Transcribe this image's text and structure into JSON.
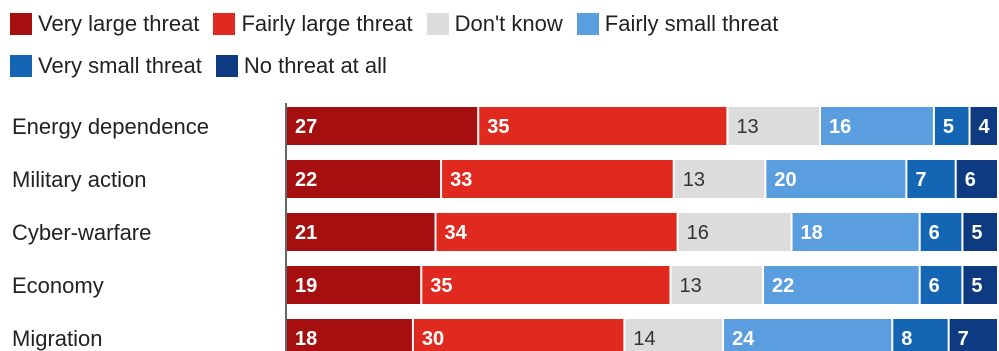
{
  "chart_data": {
    "type": "bar",
    "stacked": true,
    "orientation": "horizontal",
    "categories": [
      "Energy dependence",
      "Military action",
      "Cyber-warfare",
      "Economy",
      "Migration"
    ],
    "series": [
      {
        "name": "Very large threat",
        "color": "#a50f0f",
        "values": [
          27,
          22,
          21,
          19,
          18
        ]
      },
      {
        "name": "Fairly large threat",
        "color": "#e02a1f",
        "values": [
          35,
          33,
          34,
          35,
          30
        ]
      },
      {
        "name": "Don't know",
        "color": "#dcdcdc",
        "values": [
          13,
          13,
          16,
          13,
          14
        ]
      },
      {
        "name": "Fairly small threat",
        "color": "#5b9ee0",
        "values": [
          16,
          20,
          18,
          22,
          24
        ]
      },
      {
        "name": "Very small threat",
        "color": "#1565b5",
        "values": [
          5,
          7,
          6,
          6,
          8
        ]
      },
      {
        "name": "No threat at all",
        "color": "#0d3a80",
        "values": [
          4,
          6,
          5,
          5,
          7
        ]
      }
    ],
    "legend_position": "top",
    "grid": false
  }
}
